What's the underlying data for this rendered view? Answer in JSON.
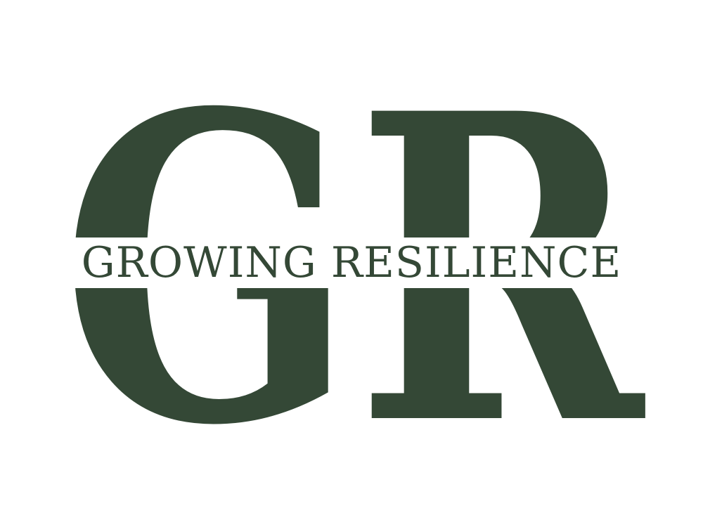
{
  "logo": {
    "monogram": "GR",
    "wordmark": "GROWING RESILIENCE"
  },
  "colors": {
    "brand": "#344836",
    "background": "#ffffff"
  }
}
